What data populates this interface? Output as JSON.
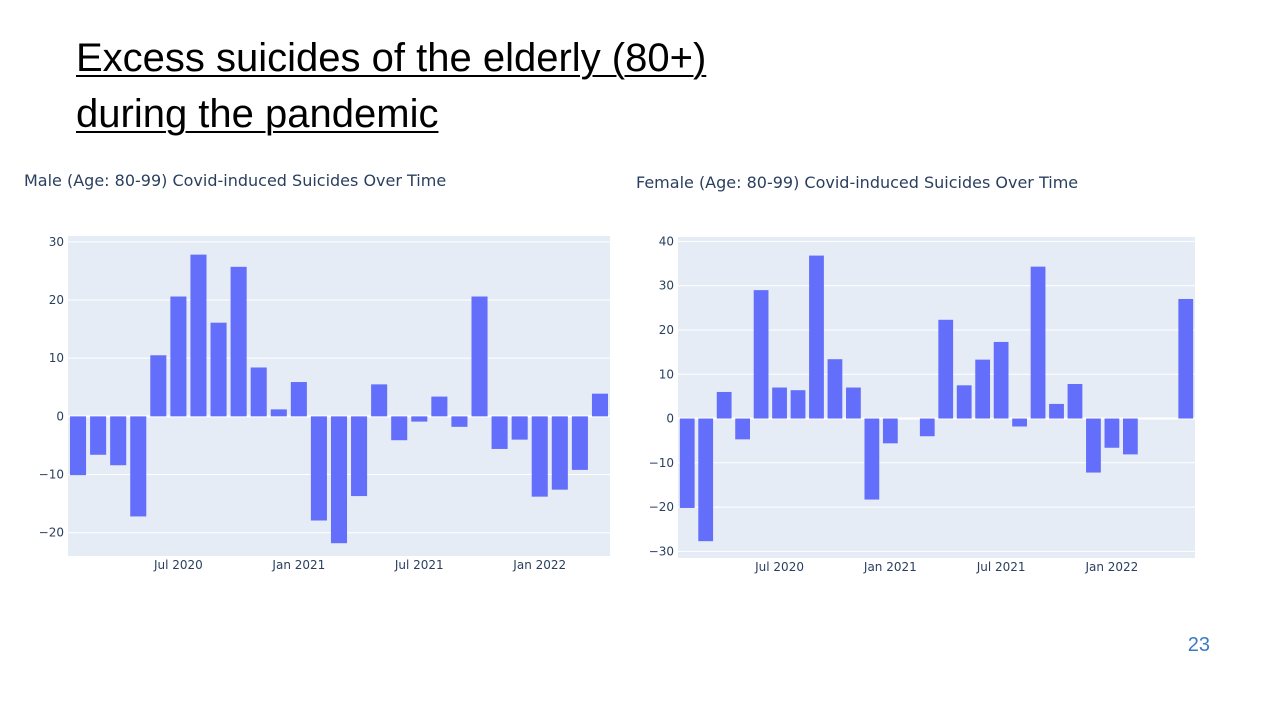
{
  "slide": {
    "title_line1": "Excess suicides of the elderly (80+)",
    "title_line2": "during the pandemic",
    "page_number": "23"
  },
  "chart_data": [
    {
      "type": "bar",
      "title": "Male (Age: 80-99) Covid-induced Suicides Over Time",
      "xlabel": "",
      "ylabel": "",
      "x": [
        "2020-02",
        "2020-03",
        "2020-04",
        "2020-05",
        "2020-06",
        "2020-07",
        "2020-08",
        "2020-09",
        "2020-10",
        "2020-11",
        "2020-12",
        "2021-01",
        "2021-02",
        "2021-03",
        "2021-04",
        "2021-05",
        "2021-06",
        "2021-07",
        "2021-08",
        "2021-09",
        "2021-10",
        "2021-11",
        "2021-12",
        "2022-01",
        "2022-02",
        "2022-03",
        "2022-04"
      ],
      "values": [
        -10.1,
        -6.6,
        -8.4,
        -17.2,
        10.5,
        20.6,
        27.8,
        16.1,
        25.7,
        8.4,
        1.2,
        5.9,
        -17.9,
        -21.8,
        -13.7,
        5.5,
        -4.1,
        -0.9,
        3.4,
        -1.8,
        20.6,
        -5.6,
        -4.0,
        -13.8,
        -12.6,
        -9.2,
        3.9
      ],
      "ylim": [
        -24,
        31
      ],
      "yticks": [
        -20,
        -10,
        0,
        10,
        20,
        30
      ],
      "yticklabels": [
        "−20",
        "−10",
        "0",
        "10",
        "20",
        "30"
      ],
      "xticks": [
        {
          "label": "Jul 2020",
          "date": "2020-07"
        },
        {
          "label": "Jan 2021",
          "date": "2021-01"
        },
        {
          "label": "Jul 2021",
          "date": "2021-07"
        },
        {
          "label": "Jan 2022",
          "date": "2022-01"
        }
      ],
      "grid": true,
      "bar_color": "#636efa",
      "plot_bg": "#e5ecf6"
    },
    {
      "type": "bar",
      "title": "Female (Age: 80-99) Covid-induced Suicides Over Time",
      "xlabel": "",
      "ylabel": "",
      "x": [
        "2020-02",
        "2020-03",
        "2020-04",
        "2020-05",
        "2020-06",
        "2020-07",
        "2020-08",
        "2020-09",
        "2020-10",
        "2020-11",
        "2020-12",
        "2021-01",
        "2021-02",
        "2021-03",
        "2021-04",
        "2021-05",
        "2021-06",
        "2021-07",
        "2021-08",
        "2021-09",
        "2021-10",
        "2021-11",
        "2021-12",
        "2022-01",
        "2022-02",
        "2022-03",
        "2022-04",
        "2022-05"
      ],
      "values": [
        -20.2,
        -27.7,
        6.0,
        -4.7,
        29.0,
        7.0,
        6.4,
        36.8,
        13.4,
        7.0,
        -18.3,
        -5.6,
        0,
        -4.0,
        22.3,
        7.5,
        13.3,
        17.3,
        -1.8,
        34.3,
        3.3,
        7.8,
        -12.2,
        -6.6,
        -8.1,
        0,
        0,
        27.0
      ],
      "ylim": [
        -31.5,
        41
      ],
      "yticks": [
        -30,
        -20,
        -10,
        0,
        10,
        20,
        30,
        40
      ],
      "yticklabels": [
        "−30",
        "−20",
        "−10",
        "0",
        "10",
        "20",
        "30",
        "40"
      ],
      "xticks": [
        {
          "label": "Jul 2020",
          "date": "2020-07"
        },
        {
          "label": "Jan 2021",
          "date": "2021-01"
        },
        {
          "label": "Jul 2021",
          "date": "2021-07"
        },
        {
          "label": "Jan 2022",
          "date": "2022-01"
        }
      ],
      "grid": true,
      "bar_color": "#636efa",
      "plot_bg": "#e5ecf6"
    }
  ]
}
